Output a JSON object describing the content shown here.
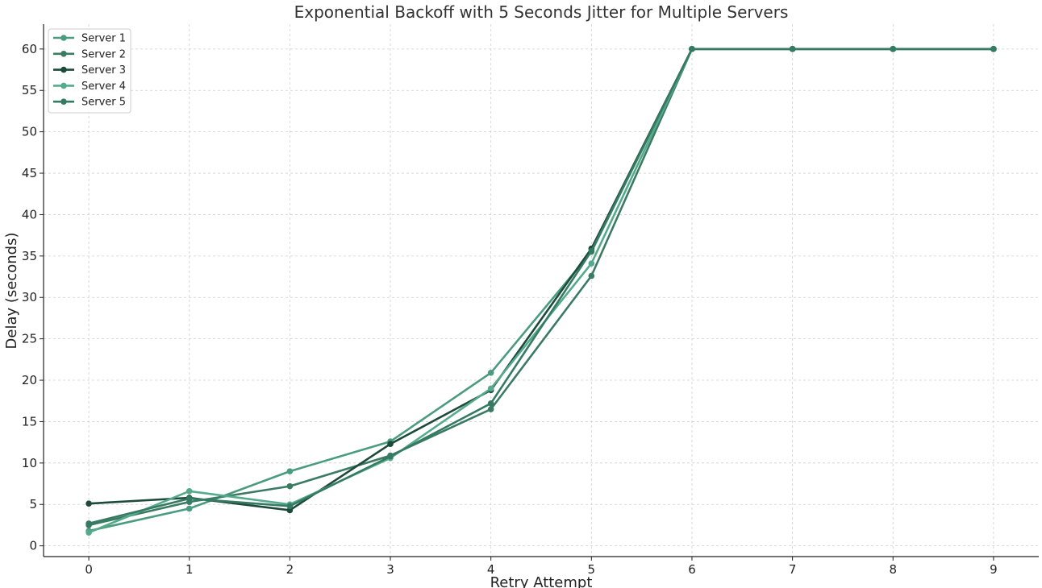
{
  "chart_data": {
    "type": "line",
    "title": "Exponential Backoff with 5 Seconds Jitter for Multiple Servers",
    "xlabel": "Retry Attempt",
    "ylabel": "Delay (seconds)",
    "x": [
      0,
      1,
      2,
      3,
      4,
      5,
      6,
      7,
      8,
      9
    ],
    "xlim": [
      -0.45,
      9.45
    ],
    "ylim": [
      -1.3,
      63
    ],
    "xticks": [
      0,
      1,
      2,
      3,
      4,
      5,
      6,
      7,
      8,
      9
    ],
    "yticks": [
      0,
      5,
      10,
      15,
      20,
      25,
      30,
      35,
      40,
      45,
      50,
      55,
      60
    ],
    "grid": true,
    "legend_position": "top-left",
    "series": [
      {
        "name": "Server 1",
        "color": "#4a9b7f",
        "values": [
          1.8,
          4.5,
          9.0,
          12.6,
          20.9,
          35.5,
          60,
          60,
          60,
          60
        ]
      },
      {
        "name": "Server 2",
        "color": "#3b7a63",
        "values": [
          2.5,
          5.3,
          7.2,
          10.9,
          16.5,
          32.6,
          60,
          60,
          60,
          60
        ]
      },
      {
        "name": "Server 3",
        "color": "#1d4a3a",
        "values": [
          5.1,
          5.8,
          4.3,
          12.3,
          18.8,
          35.9,
          60,
          60,
          60,
          60
        ]
      },
      {
        "name": "Server 4",
        "color": "#55aa8c",
        "values": [
          1.6,
          6.6,
          5.0,
          10.6,
          19.0,
          34.1,
          60,
          60,
          60,
          60
        ]
      },
      {
        "name": "Server 5",
        "color": "#357a62",
        "values": [
          2.7,
          5.7,
          4.8,
          10.8,
          17.2,
          35.6,
          60,
          60,
          60,
          60
        ]
      }
    ]
  }
}
